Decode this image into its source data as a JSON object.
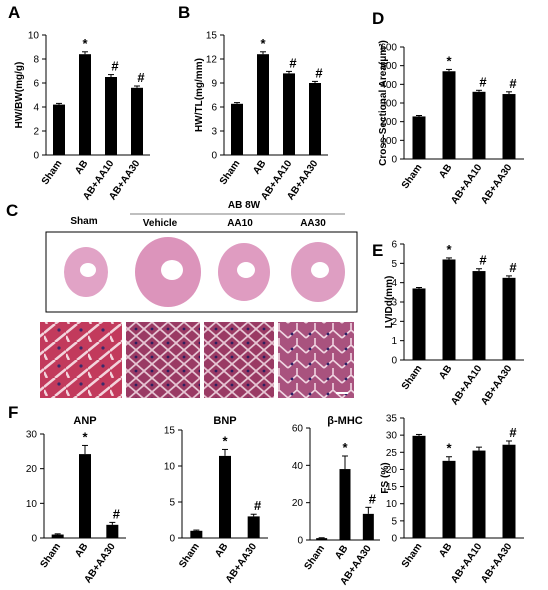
{
  "figure": {
    "section_c": {
      "label": "C",
      "header_group": "AB 8W",
      "columns": [
        "Sham",
        "Vehicle",
        "AA10",
        "AA30"
      ]
    }
  },
  "chart_data": [
    {
      "id": "A",
      "label": "A",
      "type": "bar",
      "categories": [
        "Sham",
        "AB",
        "AB+AA10",
        "AB+AA30"
      ],
      "values": [
        4.2,
        8.4,
        6.5,
        5.6
      ],
      "errors": [
        0.1,
        0.2,
        0.2,
        0.15
      ],
      "annotations": [
        "",
        "*",
        "#",
        "#"
      ],
      "ylabel": "HW/BW(mg/g)",
      "ylim": [
        0,
        10
      ],
      "yticks": [
        0,
        2,
        4,
        6,
        8,
        10
      ],
      "yticklabels": [
        "0",
        "2",
        "4",
        "6",
        "8",
        "10"
      ],
      "bar_color": "#000000"
    },
    {
      "id": "B",
      "label": "B",
      "type": "bar",
      "categories": [
        "Sham",
        "AB",
        "AB+AA10",
        "AB+AA30"
      ],
      "values": [
        6.4,
        12.6,
        10.2,
        9.0
      ],
      "errors": [
        0.15,
        0.3,
        0.25,
        0.2
      ],
      "annotations": [
        "",
        "*",
        "#",
        "#"
      ],
      "ylabel": "HW/TL(mg/mm)",
      "ylim": [
        0,
        15
      ],
      "yticks": [
        0,
        3,
        6,
        9,
        12,
        15
      ],
      "yticklabels": [
        "0",
        "3",
        "6",
        "9",
        "12",
        "15"
      ],
      "bar_color": "#000000"
    },
    {
      "id": "D",
      "label": "D",
      "type": "bar",
      "categories": [
        "Sham",
        "AB",
        "AB+AA10",
        "AB+AA30"
      ],
      "values": [
        228,
        470,
        360,
        348
      ],
      "errors": [
        5,
        10,
        8,
        12
      ],
      "annotations": [
        "",
        "*",
        "#",
        "#"
      ],
      "ylabel": "Cross-Sectional Area(μm²)",
      "ylim": [
        0,
        600
      ],
      "yticks": [
        0,
        100,
        200,
        300,
        400,
        500,
        600
      ],
      "yticklabels": [
        "0",
        "100",
        "200",
        "300",
        "400",
        "500",
        "600"
      ],
      "bar_color": "#000000"
    },
    {
      "id": "E",
      "label": "E",
      "type": "bar",
      "categories": [
        "Sham",
        "AB",
        "AB+AA10",
        "AB+AA30"
      ],
      "values": [
        3.7,
        5.2,
        4.6,
        4.25
      ],
      "errors": [
        0.05,
        0.08,
        0.12,
        0.1
      ],
      "annotations": [
        "",
        "*",
        "#",
        "#"
      ],
      "ylabel": "LVIDd(mm)",
      "ylim": [
        0,
        6
      ],
      "yticks": [
        0,
        1,
        2,
        3,
        4,
        5,
        6
      ],
      "yticklabels": [
        "0",
        "1",
        "2",
        "3",
        "4",
        "5",
        "6"
      ],
      "bar_color": "#000000"
    },
    {
      "id": "F1",
      "label": "F",
      "title": "ANP",
      "type": "bar",
      "categories": [
        "Sham",
        "AB",
        "AB+AA30"
      ],
      "values": [
        1.0,
        24.2,
        3.8
      ],
      "errors": [
        0.2,
        2.5,
        0.7
      ],
      "annotations": [
        "",
        "*",
        "#"
      ],
      "ylabel": "",
      "ylim": [
        0,
        30
      ],
      "yticks": [
        0,
        10,
        20,
        30
      ],
      "yticklabels": [
        "0",
        "10",
        "20",
        "30"
      ],
      "bar_color": "#000000"
    },
    {
      "id": "F2",
      "title": "BNP",
      "type": "bar",
      "categories": [
        "Sham",
        "AB",
        "AB+AA30"
      ],
      "values": [
        1.0,
        11.4,
        3.0
      ],
      "errors": [
        0.1,
        0.9,
        0.3
      ],
      "annotations": [
        "",
        "*",
        "#"
      ],
      "ylabel": "",
      "ylim": [
        0,
        15
      ],
      "yticks": [
        0,
        5,
        10,
        15
      ],
      "yticklabels": [
        "0",
        "5",
        "10",
        "15"
      ],
      "bar_color": "#000000"
    },
    {
      "id": "F3",
      "title": "β-MHC",
      "type": "bar",
      "categories": [
        "Sham",
        "AB",
        "AB+AA30"
      ],
      "values": [
        1.0,
        38.0,
        14.0
      ],
      "errors": [
        0.2,
        7.0,
        3.5
      ],
      "annotations": [
        "",
        "*",
        "#"
      ],
      "ylabel": "",
      "ylim": [
        0,
        60
      ],
      "yticks": [
        0,
        20,
        40,
        60
      ],
      "yticklabels": [
        "0",
        "20",
        "40",
        "60"
      ],
      "bar_color": "#000000"
    },
    {
      "id": "FS",
      "type": "bar",
      "categories": [
        "Sham",
        "AB",
        "AB+AA10",
        "AB+AA30"
      ],
      "values": [
        29.8,
        22.5,
        25.5,
        27.2
      ],
      "errors": [
        0.4,
        1.2,
        1.0,
        1.1
      ],
      "annotations": [
        "",
        "*",
        "",
        "#"
      ],
      "ylabel": "FS (%)",
      "ylim": [
        0,
        35
      ],
      "yticks": [
        0,
        5,
        10,
        15,
        20,
        25,
        30,
        35
      ],
      "yticklabels": [
        "0",
        "5",
        "10",
        "15",
        "20",
        "25",
        "30",
        "35"
      ],
      "bar_color": "#000000"
    }
  ]
}
